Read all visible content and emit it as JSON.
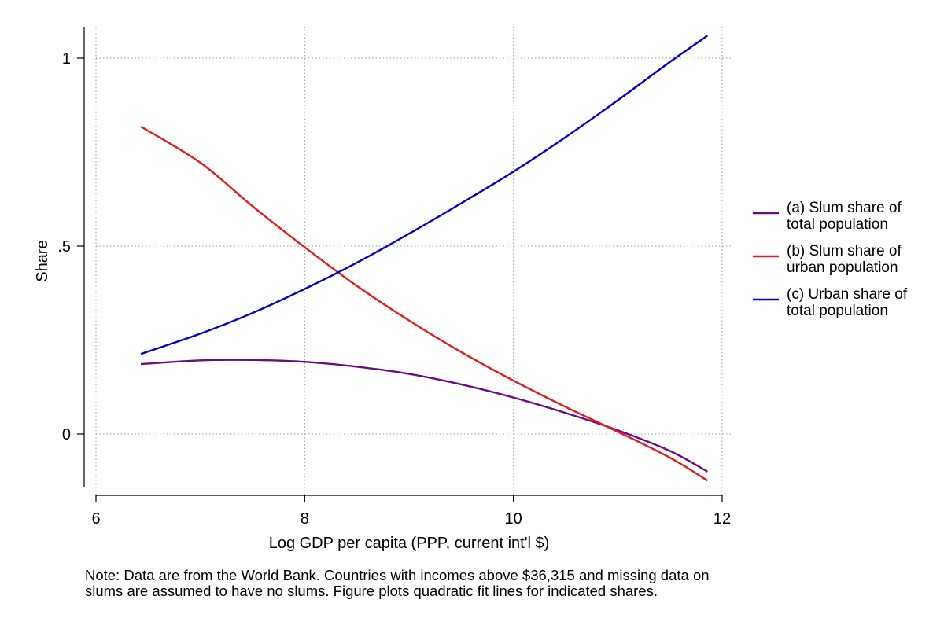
{
  "chart_data": {
    "type": "line",
    "title": "",
    "xlabel": "Log GDP per capita (PPP, current int'l $)",
    "ylabel": "Share",
    "xlim": [
      6,
      12
    ],
    "ylim": [
      -0.16,
      1.1
    ],
    "xticks": [
      6,
      8,
      10,
      12
    ],
    "xtick_labels": [
      "6",
      "8",
      "10",
      "12"
    ],
    "yticks": [
      0,
      0.5,
      1
    ],
    "ytick_labels": [
      "0",
      ".5",
      "1"
    ],
    "grid": "dotted, at tick positions",
    "legend_position": "right",
    "series": [
      {
        "name": "(a) Slum share of total population",
        "legend_lines": [
          "(a) Slum share of",
          "total population"
        ],
        "color": "#6a0d83",
        "x": [
          6.43,
          7.0,
          7.5,
          8.0,
          8.5,
          9.0,
          9.5,
          10.0,
          10.5,
          11.0,
          11.5,
          11.86
        ],
        "y": [
          0.186,
          0.196,
          0.197,
          0.192,
          0.179,
          0.16,
          0.132,
          0.097,
          0.056,
          0.01,
          -0.045,
          -0.1
        ]
      },
      {
        "name": "(b) Slum share of urban population",
        "legend_lines": [
          "(b) Slum share of",
          "urban population"
        ],
        "color": "#e41a1c",
        "x": [
          6.43,
          7.0,
          7.5,
          8.0,
          8.5,
          9.0,
          9.5,
          10.0,
          10.5,
          11.0,
          11.5,
          11.86
        ],
        "y": [
          0.818,
          0.722,
          0.606,
          0.497,
          0.394,
          0.302,
          0.218,
          0.142,
          0.072,
          0.006,
          -0.063,
          -0.124
        ]
      },
      {
        "name": "(c) Urban share of total population",
        "legend_lines": [
          "(c) Urban share of",
          "total population"
        ],
        "color": "#0000cc",
        "x": [
          6.43,
          7.0,
          7.5,
          8.0,
          8.5,
          9.0,
          9.5,
          10.0,
          10.5,
          11.0,
          11.5,
          11.86
        ],
        "y": [
          0.213,
          0.267,
          0.322,
          0.386,
          0.456,
          0.533,
          0.614,
          0.698,
          0.79,
          0.888,
          0.99,
          1.06
        ]
      }
    ]
  },
  "note": {
    "lines": [
      "Note: Data are from the World Bank. Countries with incomes above $36,315 and missing data on",
      "slums are assumed to have no slums. Figure plots quadratic fit lines for indicated shares."
    ]
  }
}
